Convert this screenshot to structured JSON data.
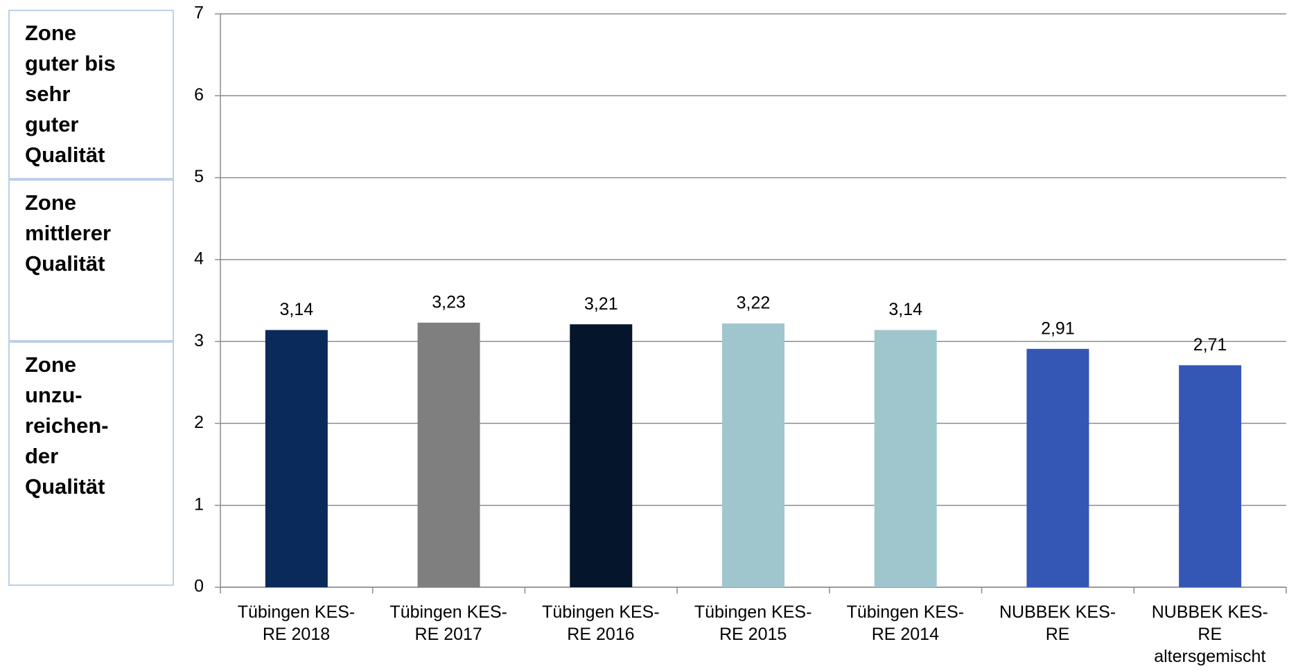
{
  "zones": [
    {
      "label": "Zone\nguter bis\nsehr\nguter\nQualität"
    },
    {
      "label": "Zone\nmittlerer\nQualität"
    },
    {
      "label": "Zone\nunzu-\nreichen-\nder\nQualität"
    }
  ],
  "chart_data": {
    "type": "bar",
    "categories": [
      "Tübingen KES-\nRE 2018",
      "Tübingen KES-\nRE 2017",
      "Tübingen KES-\nRE 2016",
      "Tübingen KES-\nRE 2015",
      "Tübingen KES-\nRE 2014",
      "NUBBEK KES-\nRE",
      "NUBBEK KES-\nRE\naltersgemischt"
    ],
    "values": [
      3.14,
      3.23,
      3.21,
      3.22,
      3.14,
      2.91,
      2.71
    ],
    "value_labels": [
      "3,14",
      "3,23",
      "3,21",
      "3,22",
      "3,14",
      "2,91",
      "2,71"
    ],
    "colors": [
      "#0b2a5c",
      "#7f7f7f",
      "#05152c",
      "#9fc6cc",
      "#9fc6cc",
      "#3456b4",
      "#3456b4"
    ],
    "ylim": [
      0,
      7
    ],
    "yticks": [
      0,
      1,
      2,
      3,
      4,
      5,
      6,
      7
    ],
    "grid": true
  }
}
